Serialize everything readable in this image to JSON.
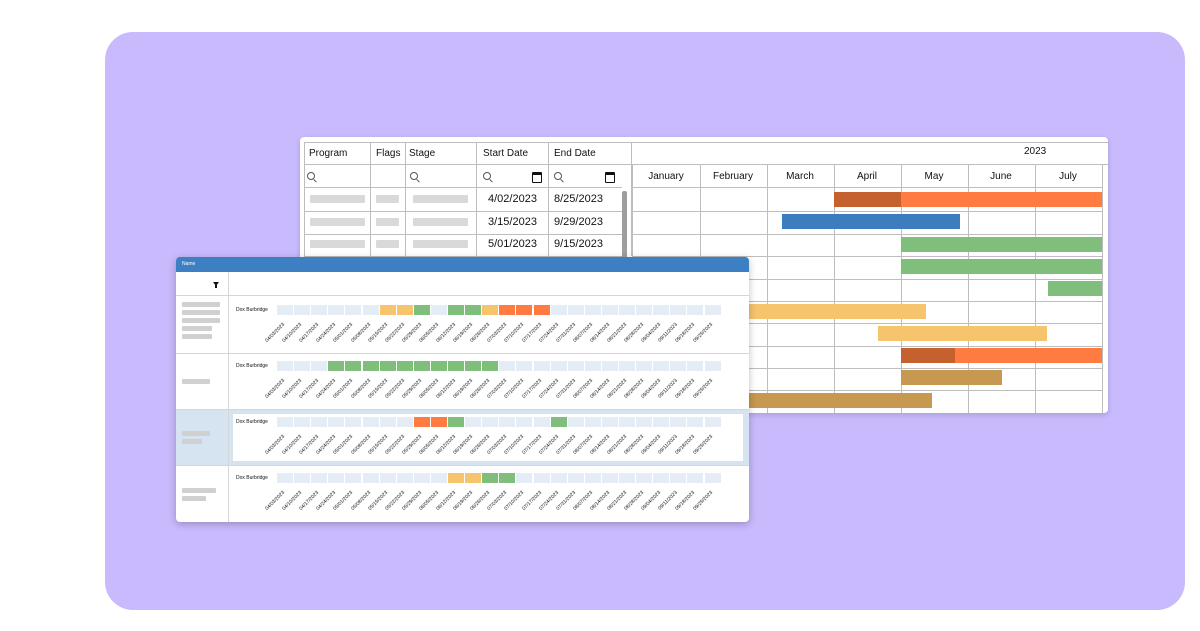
{
  "table": {
    "year": "2023",
    "columns": [
      "Program",
      "Flags",
      "Stage",
      "Start Date",
      "End Date"
    ],
    "months": [
      "January",
      "February",
      "March",
      "April",
      "May",
      "June",
      "July"
    ],
    "rows": [
      {
        "start": "4/02/2023",
        "end": "8/25/2023"
      },
      {
        "start": "3/15/2023",
        "end": "9/29/2023"
      },
      {
        "start": "5/01/2023",
        "end": "9/15/2023"
      }
    ]
  },
  "gantt_bars": [
    {
      "color": "#c4612f",
      "start_month": 3,
      "end_month": 4
    },
    {
      "color": "#ff7b42",
      "start_month": 4,
      "end_month": 7
    },
    {
      "color": "#3e7cc0",
      "start_month": 2.22,
      "end_month": 4.88
    },
    {
      "color": "#80be7c",
      "start_month": 4,
      "end_month": 7
    },
    {
      "color": "#80be7c",
      "start_month": 4,
      "end_month": 7
    },
    {
      "color": "#80be7c",
      "start_month": 6.2,
      "end_month": 7
    },
    {
      "color": "#f7c46e",
      "start_month": 1.7,
      "end_month": 4.37
    },
    {
      "color": "#f7c46e",
      "start_month": 3.65,
      "end_month": 6.18
    },
    {
      "color": "#c4612f",
      "start_month": 4,
      "end_month": 4.8
    },
    {
      "color": "#ff7b42",
      "start_month": 4.8,
      "end_month": 7
    },
    {
      "color": "#c69850",
      "start_month": 4,
      "end_month": 5.5
    },
    {
      "color": "#c69850",
      "start_month": 1.5,
      "end_month": 4.47
    }
  ],
  "front": {
    "header_label": "Name",
    "dates": [
      "04/03/2023",
      "04/10/2023",
      "04/17/2023",
      "04/24/2023",
      "05/01/2023",
      "05/08/2023",
      "05/15/2023",
      "05/22/2023",
      "05/29/2023",
      "06/05/2023",
      "06/12/2023",
      "06/19/2023",
      "06/26/2023",
      "07/03/2023",
      "07/10/2023",
      "07/17/2023",
      "07/24/2023",
      "07/31/2023",
      "08/07/2023",
      "08/14/2023",
      "08/21/2023",
      "08/28/2023",
      "09/04/2023",
      "09/11/2023",
      "09/18/2023",
      "09/25/2023"
    ],
    "colors": {
      "e": "#e4ecf5",
      "o": "#f7c46e",
      "g": "#80be7c",
      "r": "#ff7b42"
    },
    "rows": [
      {
        "name": "Dox Burbridge",
        "cells": "eeeeeeoogeggorrreeeeeeeeee"
      },
      {
        "name": "Dox Burbridge",
        "cells": "eeeggggggggggeeeeeeeeeeeee"
      },
      {
        "name": "Dox Burbridge",
        "cells": "eeeeeeeerrgeeeeegeeeeeeeee"
      },
      {
        "name": "Dox Burbridge",
        "cells": "eeeeeeeeeeooggeeeeeeeeeeee"
      }
    ]
  }
}
